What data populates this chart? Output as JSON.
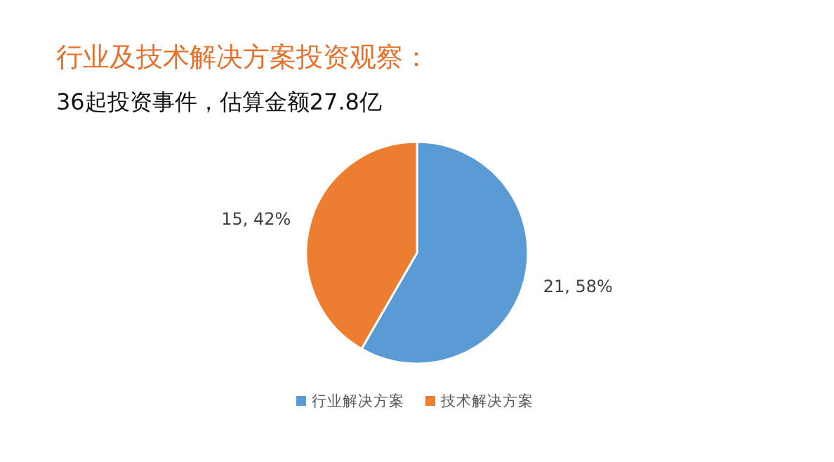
{
  "chart_data": {
    "type": "pie",
    "title": "行业及技术解决方案投资观察：",
    "subtitle": "36起投资事件，估算金额27.8亿",
    "categories": [
      "行业解决方案",
      "技术解决方案"
    ],
    "values": [
      21,
      15
    ],
    "value_labels": [
      "21, 58%",
      "15, 42%"
    ],
    "colors": [
      "#5b9bd5",
      "#ed7d31"
    ],
    "legend": "bottom"
  }
}
